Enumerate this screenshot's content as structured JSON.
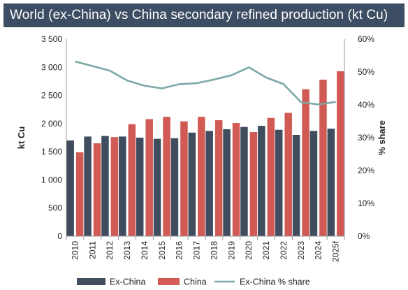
{
  "title": "World (ex-China) vs China secondary refined production (kt Cu)",
  "colors": {
    "title_bg": "#3d4d63",
    "ex_china": "#3f4d5e",
    "china": "#d25a54",
    "share": "#7aa9a6"
  },
  "chart_data": {
    "type": "bar",
    "title": "World (ex-China) vs China secondary refined production (kt Cu)",
    "categories": [
      "2010",
      "2011",
      "2012",
      "2013",
      "2014",
      "2015",
      "2016",
      "2017",
      "2018",
      "2019",
      "2020",
      "2021",
      "2022",
      "2023",
      "2024",
      "2025f"
    ],
    "ylabel": "kt Cu",
    "y2label": "% share",
    "ylim": [
      0,
      3500
    ],
    "y_ticks": [
      "0",
      "500",
      "1 000",
      "1 500",
      "2 000",
      "2 500",
      "3 000",
      "3 500"
    ],
    "y2lim": [
      0,
      60
    ],
    "y2_ticks": [
      "0%",
      "10%",
      "20%",
      "30%",
      "40%",
      "50%",
      "60%"
    ],
    "grid": false,
    "legend_position": "bottom",
    "series": [
      {
        "name": "Ex-China",
        "type": "bar",
        "values": [
          1700,
          1770,
          1780,
          1770,
          1750,
          1730,
          1740,
          1840,
          1870,
          1900,
          1940,
          1960,
          1890,
          1800,
          1870,
          1910
        ]
      },
      {
        "name": "China",
        "type": "bar",
        "values": [
          1490,
          1650,
          1760,
          1990,
          2080,
          2120,
          2040,
          2120,
          2060,
          2010,
          1850,
          2100,
          2190,
          2610,
          2780,
          2930
        ]
      },
      {
        "name": "Ex-China % share",
        "type": "line",
        "axis": "right",
        "values": [
          53.2,
          51.8,
          50.4,
          47.4,
          45.8,
          45.0,
          46.3,
          46.6,
          47.7,
          49.0,
          51.4,
          48.3,
          46.3,
          40.8,
          40.1,
          40.9
        ]
      }
    ]
  }
}
